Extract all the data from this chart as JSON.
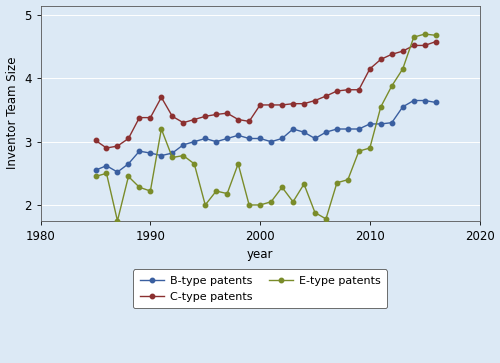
{
  "B_years": [
    1985,
    1986,
    1987,
    1988,
    1989,
    1990,
    1991,
    1992,
    1993,
    1994,
    1995,
    1996,
    1997,
    1998,
    1999,
    2000,
    2001,
    2002,
    2003,
    2004,
    2005,
    2006,
    2007,
    2008,
    2009,
    2010,
    2011,
    2012,
    2013,
    2014,
    2015,
    2016
  ],
  "B_values": [
    2.55,
    2.62,
    2.52,
    2.65,
    2.85,
    2.82,
    2.78,
    2.82,
    2.95,
    3.0,
    3.05,
    3.0,
    3.05,
    3.1,
    3.05,
    3.05,
    3.0,
    3.05,
    3.2,
    3.15,
    3.05,
    3.15,
    3.2,
    3.2,
    3.2,
    3.28,
    3.28,
    3.3,
    3.55,
    3.65,
    3.65,
    3.62
  ],
  "C_years": [
    1985,
    1986,
    1987,
    1988,
    1989,
    1990,
    1991,
    1992,
    1993,
    1994,
    1995,
    1996,
    1997,
    1998,
    1999,
    2000,
    2001,
    2002,
    2003,
    2004,
    2005,
    2006,
    2007,
    2008,
    2009,
    2010,
    2011,
    2012,
    2013,
    2014,
    2015,
    2016
  ],
  "C_values": [
    3.02,
    2.9,
    2.93,
    3.05,
    3.38,
    3.38,
    3.7,
    3.4,
    3.3,
    3.35,
    3.4,
    3.43,
    3.45,
    3.35,
    3.32,
    3.58,
    3.58,
    3.58,
    3.6,
    3.6,
    3.65,
    3.72,
    3.8,
    3.82,
    3.82,
    4.15,
    4.3,
    4.38,
    4.43,
    4.52,
    4.52,
    4.58
  ],
  "E_years": [
    1985,
    1986,
    1987,
    1988,
    1989,
    1990,
    1991,
    1992,
    1993,
    1994,
    1995,
    1996,
    1997,
    1998,
    1999,
    2000,
    2001,
    2002,
    2003,
    2004,
    2005,
    2006,
    2007,
    2008,
    2009,
    2010,
    2011,
    2012,
    2013,
    2014,
    2015,
    2016
  ],
  "E_values": [
    2.45,
    2.5,
    1.75,
    2.45,
    2.28,
    2.22,
    3.2,
    2.75,
    2.78,
    2.65,
    2.0,
    2.22,
    2.18,
    2.65,
    2.0,
    2.0,
    2.05,
    2.28,
    2.05,
    2.33,
    1.88,
    1.78,
    2.35,
    2.4,
    2.85,
    2.9,
    3.55,
    3.88,
    4.15,
    4.65,
    4.7,
    4.68
  ],
  "B_color": "#3a5fa0",
  "C_color": "#8b3030",
  "E_color": "#7a8c2a",
  "bg_color": "#dce9f5",
  "plot_bg_color": "#dce9f5",
  "ylabel": "Inventor Team Size",
  "xlabel": "year",
  "xlim": [
    1980,
    2020
  ],
  "ylim": [
    1.75,
    5.15
  ],
  "yticks": [
    2,
    3,
    4,
    5
  ],
  "xticks": [
    1980,
    1990,
    2000,
    2010,
    2020
  ],
  "legend_labels": [
    "B-type patents",
    "C-type patents",
    "E-type patents"
  ],
  "marker": "o",
  "markersize": 3.2,
  "linewidth": 1.0,
  "ylabel_fontsize": 8.5,
  "xlabel_fontsize": 8.5,
  "tick_fontsize": 8.5,
  "legend_fontsize": 8.0
}
